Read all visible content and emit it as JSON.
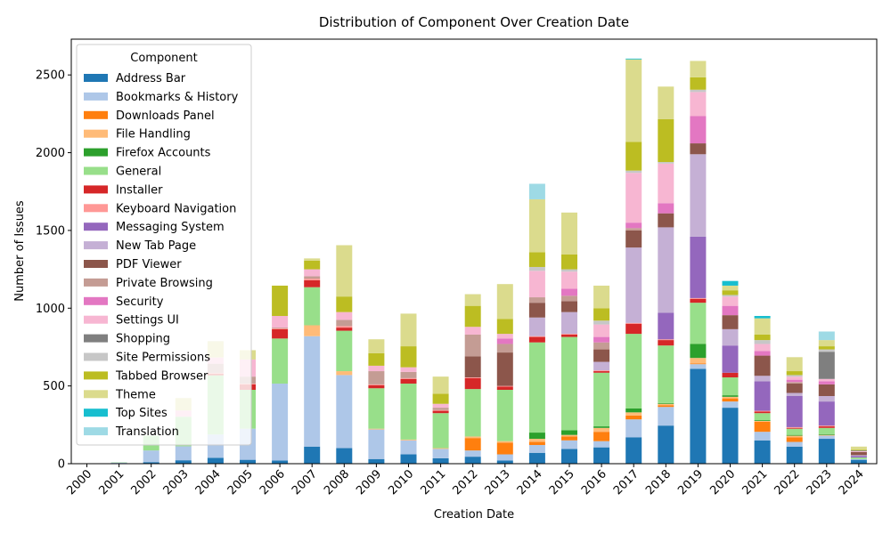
{
  "chart_data": {
    "type": "bar",
    "stacked": true,
    "title": "Distribution of Component Over Creation Date",
    "xlabel": "Creation Date",
    "ylabel": "Number of Issues",
    "ylim": [
      0,
      2730
    ],
    "yticks": [
      0,
      500,
      1000,
      1500,
      2000,
      2500
    ],
    "legend": {
      "title": "Component",
      "placement": "top-left"
    },
    "categories": [
      "2000",
      "2001",
      "2002",
      "2003",
      "2004",
      "2005",
      "2006",
      "2007",
      "2008",
      "2009",
      "2010",
      "2011",
      "2012",
      "2013",
      "2014",
      "2015",
      "2016",
      "2017",
      "2018",
      "2019",
      "2020",
      "2021",
      "2022",
      "2023",
      "2024"
    ],
    "series": [
      {
        "name": "Address Bar",
        "color": "#1f77b4",
        "values": [
          0,
          2,
          10,
          22,
          38,
          25,
          20,
          110,
          100,
          30,
          60,
          35,
          45,
          20,
          70,
          95,
          105,
          170,
          245,
          610,
          360,
          150,
          110,
          160,
          25
        ]
      },
      {
        "name": "Bookmarks & History",
        "color": "#aec7e8",
        "values": [
          0,
          5,
          75,
          90,
          150,
          200,
          495,
          710,
          470,
          190,
          90,
          60,
          40,
          40,
          50,
          55,
          40,
          115,
          120,
          30,
          40,
          55,
          30,
          20,
          5
        ]
      },
      {
        "name": "Downloads Panel",
        "color": "#ff7f0e",
        "values": [
          0,
          0,
          0,
          0,
          0,
          0,
          0,
          0,
          0,
          0,
          0,
          0,
          80,
          75,
          20,
          25,
          60,
          25,
          10,
          5,
          20,
          65,
          30,
          0,
          0
        ]
      },
      {
        "name": "File Handling",
        "color": "#ffbb78",
        "values": [
          0,
          0,
          0,
          0,
          0,
          0,
          0,
          70,
          25,
          5,
          5,
          5,
          10,
          10,
          20,
          10,
          25,
          20,
          10,
          35,
          10,
          5,
          10,
          5,
          0
        ]
      },
      {
        "name": "Firefox Accounts",
        "color": "#2ca02c",
        "values": [
          0,
          0,
          0,
          0,
          0,
          0,
          0,
          0,
          0,
          0,
          0,
          0,
          0,
          0,
          40,
          30,
          10,
          25,
          5,
          90,
          10,
          5,
          5,
          5,
          0
        ]
      },
      {
        "name": "General",
        "color": "#98df8a",
        "values": [
          0,
          2,
          95,
          190,
          380,
          250,
          290,
          245,
          260,
          260,
          360,
          225,
          305,
          330,
          580,
          600,
          345,
          480,
          370,
          265,
          115,
          45,
          40,
          40,
          10
        ]
      },
      {
        "name": "Installer",
        "color": "#d62728",
        "values": [
          0,
          0,
          0,
          0,
          10,
          35,
          60,
          45,
          20,
          20,
          30,
          15,
          70,
          20,
          35,
          15,
          10,
          65,
          35,
          25,
          30,
          10,
          5,
          10,
          0
        ]
      },
      {
        "name": "Keyboard Navigation",
        "color": "#ff9896",
        "values": [
          0,
          0,
          0,
          0,
          5,
          5,
          5,
          10,
          10,
          5,
          5,
          5,
          5,
          5,
          5,
          5,
          5,
          5,
          5,
          5,
          0,
          5,
          5,
          5,
          0
        ]
      },
      {
        "name": "Messaging System",
        "color": "#9467bd",
        "values": [
          0,
          0,
          0,
          0,
          0,
          0,
          0,
          0,
          0,
          0,
          0,
          0,
          0,
          0,
          0,
          0,
          0,
          0,
          170,
          395,
          175,
          190,
          200,
          155,
          10
        ]
      },
      {
        "name": "New Tab Page",
        "color": "#c5b0d5",
        "values": [
          0,
          0,
          0,
          0,
          0,
          0,
          0,
          0,
          0,
          0,
          0,
          0,
          0,
          0,
          120,
          140,
          55,
          485,
          550,
          530,
          105,
          35,
          20,
          35,
          5
        ]
      },
      {
        "name": "PDF Viewer",
        "color": "#8c564b",
        "values": [
          0,
          0,
          0,
          0,
          0,
          0,
          0,
          0,
          0,
          0,
          0,
          0,
          135,
          215,
          95,
          70,
          80,
          110,
          90,
          70,
          90,
          130,
          60,
          75,
          20
        ]
      },
      {
        "name": "Private Browsing",
        "color": "#c49c94",
        "values": [
          0,
          0,
          0,
          0,
          60,
          45,
          5,
          15,
          40,
          85,
          40,
          15,
          140,
          55,
          35,
          35,
          45,
          15,
          0,
          0,
          0,
          0,
          10,
          0,
          0
        ]
      },
      {
        "name": "Security",
        "color": "#e377c2",
        "values": [
          0,
          0,
          0,
          0,
          0,
          0,
          0,
          0,
          0,
          0,
          0,
          0,
          0,
          35,
          0,
          45,
          35,
          35,
          65,
          175,
          60,
          30,
          15,
          20,
          0
        ]
      },
      {
        "name": "Settings UI",
        "color": "#f7b6d2",
        "values": [
          0,
          0,
          0,
          40,
          40,
          110,
          75,
          45,
          50,
          35,
          30,
          25,
          50,
          30,
          170,
          110,
          80,
          320,
          255,
          155,
          60,
          45,
          20,
          15,
          5
        ]
      },
      {
        "name": "Shopping",
        "color": "#7f7f7f",
        "values": [
          0,
          0,
          0,
          0,
          0,
          0,
          0,
          0,
          0,
          0,
          0,
          0,
          0,
          0,
          0,
          0,
          0,
          0,
          0,
          0,
          0,
          0,
          0,
          175,
          5
        ]
      },
      {
        "name": "Site Permissions",
        "color": "#c7c7c7",
        "values": [
          0,
          0,
          0,
          0,
          0,
          0,
          0,
          0,
          0,
          0,
          0,
          0,
          0,
          0,
          25,
          15,
          25,
          15,
          10,
          15,
          10,
          25,
          10,
          15,
          0
        ]
      },
      {
        "name": "Tabbed Browser",
        "color": "#bcbd22",
        "values": [
          0,
          0,
          0,
          0,
          0,
          0,
          195,
          55,
          100,
          80,
          135,
          65,
          135,
          95,
          95,
          95,
          80,
          185,
          275,
          80,
          30,
          35,
          25,
          20,
          5
        ]
      },
      {
        "name": "Theme",
        "color": "#dbdb8d",
        "values": [
          0,
          0,
          0,
          80,
          105,
          60,
          0,
          15,
          330,
          90,
          210,
          110,
          75,
          225,
          340,
          270,
          145,
          530,
          210,
          105,
          30,
          105,
          90,
          40,
          20
        ]
      },
      {
        "name": "Top Sites",
        "color": "#17becf",
        "values": [
          0,
          0,
          0,
          0,
          0,
          0,
          0,
          0,
          0,
          0,
          0,
          0,
          0,
          0,
          0,
          0,
          0,
          5,
          0,
          0,
          30,
          15,
          0,
          0,
          0
        ]
      },
      {
        "name": "Translation",
        "color": "#9edae5",
        "values": [
          0,
          0,
          0,
          0,
          0,
          0,
          0,
          0,
          0,
          0,
          0,
          0,
          0,
          0,
          100,
          0,
          0,
          0,
          0,
          0,
          0,
          0,
          0,
          55,
          0
        ]
      }
    ]
  }
}
